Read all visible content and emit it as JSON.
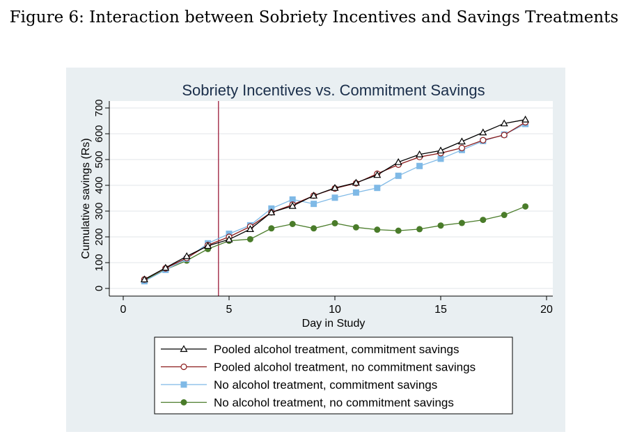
{
  "figure_caption": "Figure 6: Interaction between Sobriety Incentives and Savings Treatments",
  "chart_data": {
    "type": "line",
    "title": "Sobriety Incentives vs. Commitment Savings",
    "xlabel": "Day in Study",
    "ylabel": "Cumulative savings (Rs)",
    "xlim": [
      0,
      20
    ],
    "ylim": [
      0,
      700
    ],
    "xticks": [
      0,
      5,
      10,
      15,
      20
    ],
    "yticks": [
      0,
      100,
      200,
      300,
      400,
      500,
      600,
      700
    ],
    "grid": true,
    "vline": {
      "x": 4.5,
      "color": "#9b1b3a"
    },
    "legend_position": "bottom",
    "x": [
      1,
      2,
      3,
      4,
      5,
      6,
      7,
      8,
      9,
      10,
      11,
      12,
      13,
      14,
      15,
      16,
      17,
      18,
      19
    ],
    "series": [
      {
        "name": "Pooled alcohol treatment, commitment savings",
        "color": "#000000",
        "marker": "triangle-open",
        "values": [
          35,
          80,
          125,
          165,
          190,
          230,
          295,
          320,
          360,
          390,
          410,
          440,
          490,
          520,
          535,
          570,
          605,
          640,
          655
        ]
      },
      {
        "name": "Pooled alcohol treatment, no commitment savings",
        "color": "#8b1a1a",
        "marker": "circle-open",
        "values": [
          35,
          78,
          118,
          168,
          200,
          240,
          295,
          325,
          360,
          388,
          408,
          445,
          480,
          510,
          525,
          545,
          575,
          595,
          645
        ]
      },
      {
        "name": "No alcohol treatment, commitment savings",
        "color": "#7fb9e6",
        "marker": "square-filled",
        "values": [
          28,
          72,
          115,
          175,
          212,
          245,
          310,
          345,
          328,
          352,
          372,
          390,
          437,
          475,
          503,
          537,
          572,
          597,
          638
        ]
      },
      {
        "name": "No alcohol treatment, no commitment savings",
        "color": "#4a7c2a",
        "marker": "circle-filled",
        "values": [
          32,
          73,
          108,
          153,
          185,
          191,
          233,
          250,
          233,
          253,
          237,
          228,
          224,
          230,
          244,
          254,
          266,
          285,
          318
        ]
      }
    ]
  }
}
